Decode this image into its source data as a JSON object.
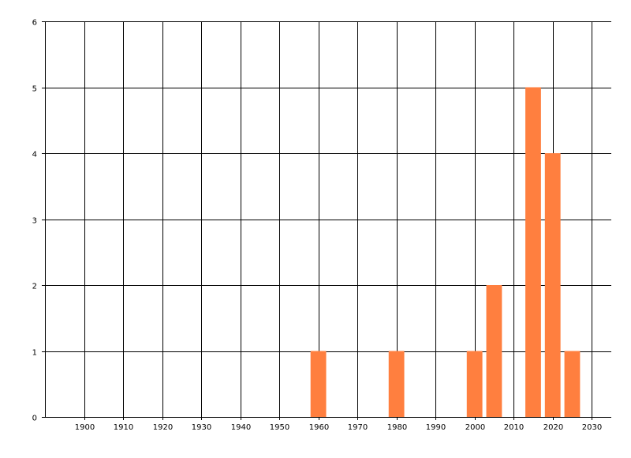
{
  "chart_data": {
    "type": "bar",
    "title": "",
    "xlabel": "",
    "ylabel": "",
    "x": [
      1960,
      1980,
      2000,
      2005,
      2015,
      2020,
      2025
    ],
    "values": [
      1,
      1,
      1,
      2,
      5,
      4,
      1
    ],
    "bar_width_years": 4,
    "xlim": [
      1890,
      2035
    ],
    "ylim": [
      0,
      6
    ],
    "x_ticks": [
      "1900",
      "1910",
      "1920",
      "1930",
      "1940",
      "1950",
      "1960",
      "1970",
      "1980",
      "1990",
      "2000",
      "2010",
      "2020",
      "2030"
    ],
    "y_ticks": [
      "0",
      "1",
      "2",
      "3",
      "4",
      "5",
      "6"
    ],
    "grid": true,
    "legend": "none",
    "bar_color": "#FF7F3F"
  }
}
